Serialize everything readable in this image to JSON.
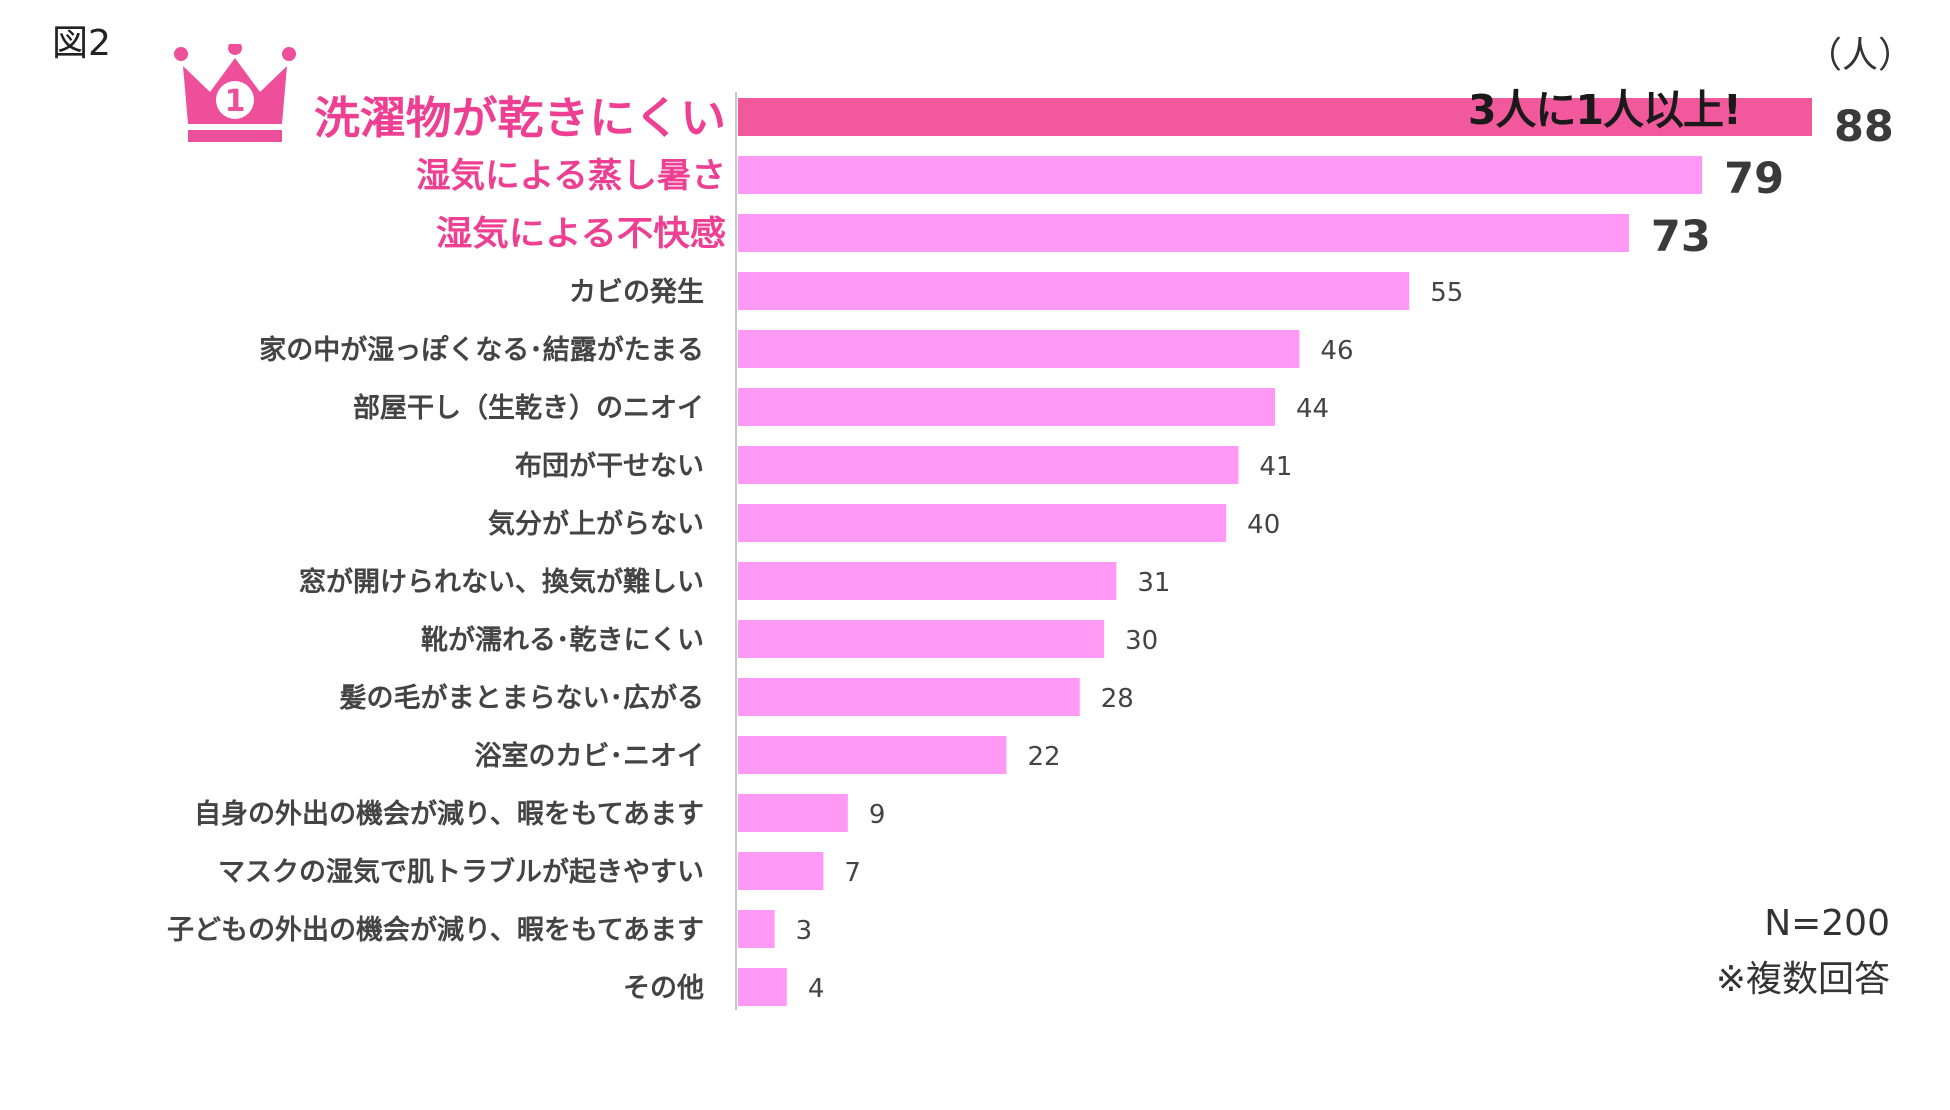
{
  "figure_label": "図2",
  "unit_label": "（人）",
  "crown_number": "1",
  "highlight_text": "3人に1人以上!",
  "footnote": {
    "n": "N=200",
    "note": "※複数回答"
  },
  "colors": {
    "top_bar": "#f2589c",
    "bar": "#ff99f5",
    "top_label": "#ee3f93",
    "crown": "#ee4f9a",
    "label": "#444444",
    "axis": "#c8c8c8"
  },
  "chart_data": {
    "type": "bar",
    "orientation": "horizontal",
    "title": "",
    "xlabel": "",
    "ylabel": "（人）",
    "xlim": [
      0,
      88
    ],
    "categories": [
      "洗濯物が乾きにくい",
      "湿気による蒸し暑さ",
      "湿気による不快感",
      "カビの発生",
      "家の中が湿っぽくなる･結露がたまる",
      "部屋干し（生乾き）のニオイ",
      "布団が干せない",
      "気分が上がらない",
      "窓が開けられない、換気が難しい",
      "靴が濡れる･乾きにくい",
      "髪の毛がまとまらない･広がる",
      "浴室のカビ･ニオイ",
      "自身の外出の機会が減り、暇をもてあます",
      "マスクの湿気で肌トラブルが起きやすい",
      "子どもの外出の機会が減り、暇をもてあます",
      "その他"
    ],
    "values": [
      88,
      79,
      73,
      55,
      46,
      44,
      41,
      40,
      31,
      30,
      28,
      22,
      9,
      7,
      3,
      4
    ],
    "value_labels": [
      "88",
      "79",
      "73",
      "55",
      "46",
      "44",
      "41",
      "40",
      "31",
      "30",
      "28",
      "22",
      "9",
      "7",
      "3",
      "4"
    ],
    "emphasized_top": 3,
    "grid": false,
    "legend": "none"
  }
}
